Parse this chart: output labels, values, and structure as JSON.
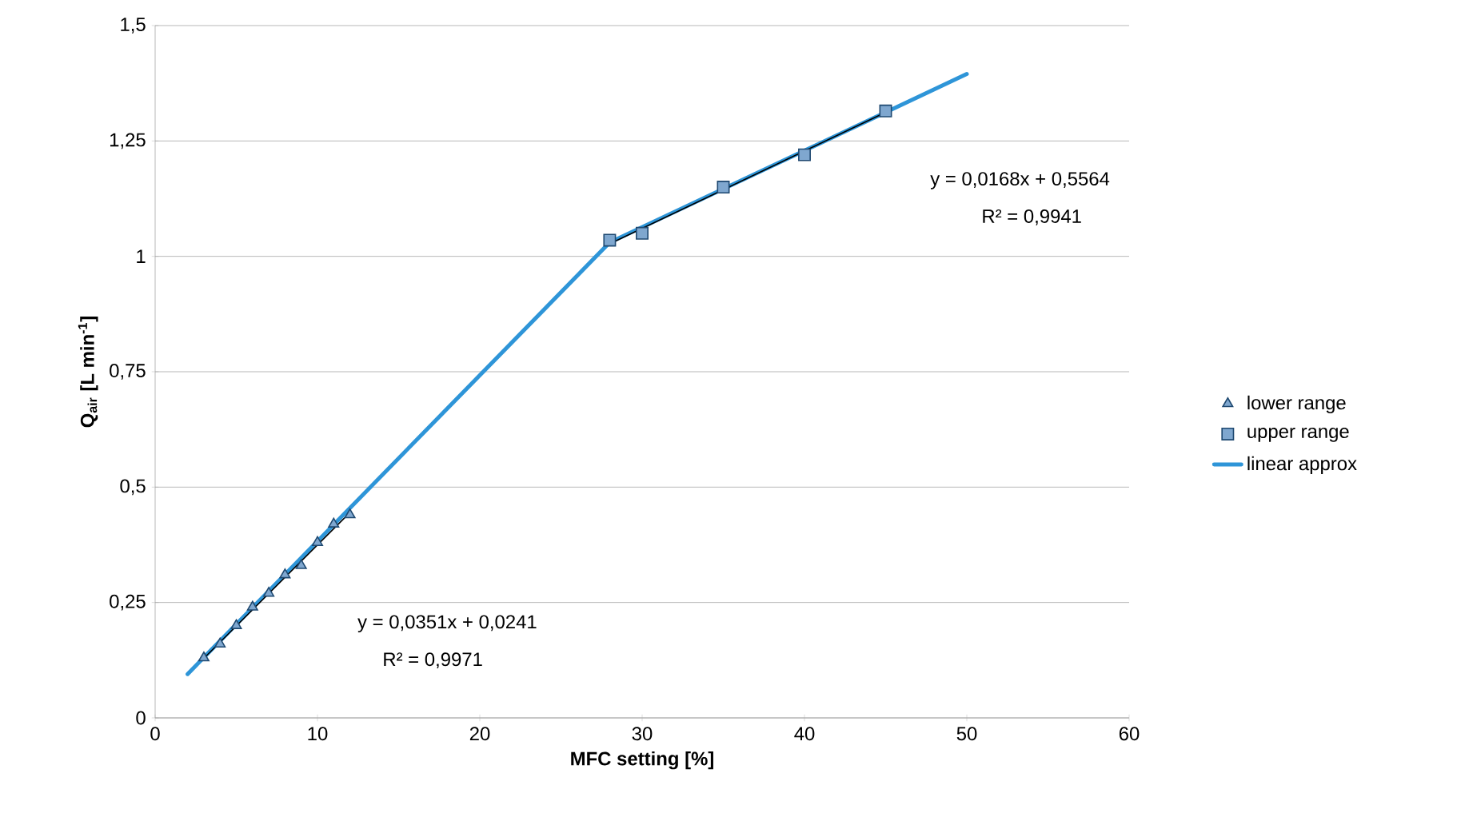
{
  "chart_data": {
    "type": "scatter",
    "xlabel": "MFC setting [%]",
    "ylabel": "Q$_{air}$ [L min$^{-1}$]",
    "xlim": [
      0,
      60
    ],
    "xticks": [
      0,
      10,
      20,
      30,
      40,
      50,
      60
    ],
    "ylim": [
      0,
      1.5
    ],
    "yticks": [
      0,
      {
        "value": 0.25,
        "label": "0,25"
      },
      {
        "value": 0.5,
        "label": "0,5"
      },
      {
        "value": 0.75,
        "label": "0,75"
      },
      1,
      {
        "value": 1.25,
        "label": "1,25"
      },
      {
        "value": 1.5,
        "label": "1,5"
      }
    ],
    "grid": "y",
    "legend": "right",
    "series": [
      {
        "name": "lower range",
        "color": "#7fa7cf",
        "marker": "triangle",
        "x": [
          3,
          4,
          5,
          6,
          7,
          8,
          9,
          10,
          11,
          12
        ],
        "values": [
          0.13,
          0.16,
          0.2,
          0.24,
          0.27,
          0.31,
          0.33,
          0.38,
          0.42,
          0.44
        ]
      },
      {
        "name": "upper range",
        "color": "#7fa7cf",
        "marker": "square",
        "x": [
          28,
          30,
          35,
          40,
          45
        ],
        "values": [
          1.035,
          1.05,
          1.15,
          1.22,
          1.315
        ]
      },
      {
        "name": "linear approx",
        "type": "line",
        "color": "#2e95d8",
        "marker": "none",
        "x": [
          2,
          28,
          50
        ],
        "values": [
          0.095,
          1.03,
          1.395
        ]
      },
      {
        "type": "line",
        "color": "#000000",
        "marker": "none",
        "x": [
          3,
          12
        ],
        "values": [
          0.129,
          0.445
        ]
      },
      {
        "type": "line",
        "color": "#000000",
        "marker": "none",
        "x": [
          28,
          45
        ],
        "values": [
          1.027,
          1.312
        ]
      }
    ],
    "annotations": [
      "y = 0,0351x + 0,0241",
      "R² = 0,9971",
      "y = 0,0168x + 0,5564",
      "R² = 0,9941"
    ]
  }
}
